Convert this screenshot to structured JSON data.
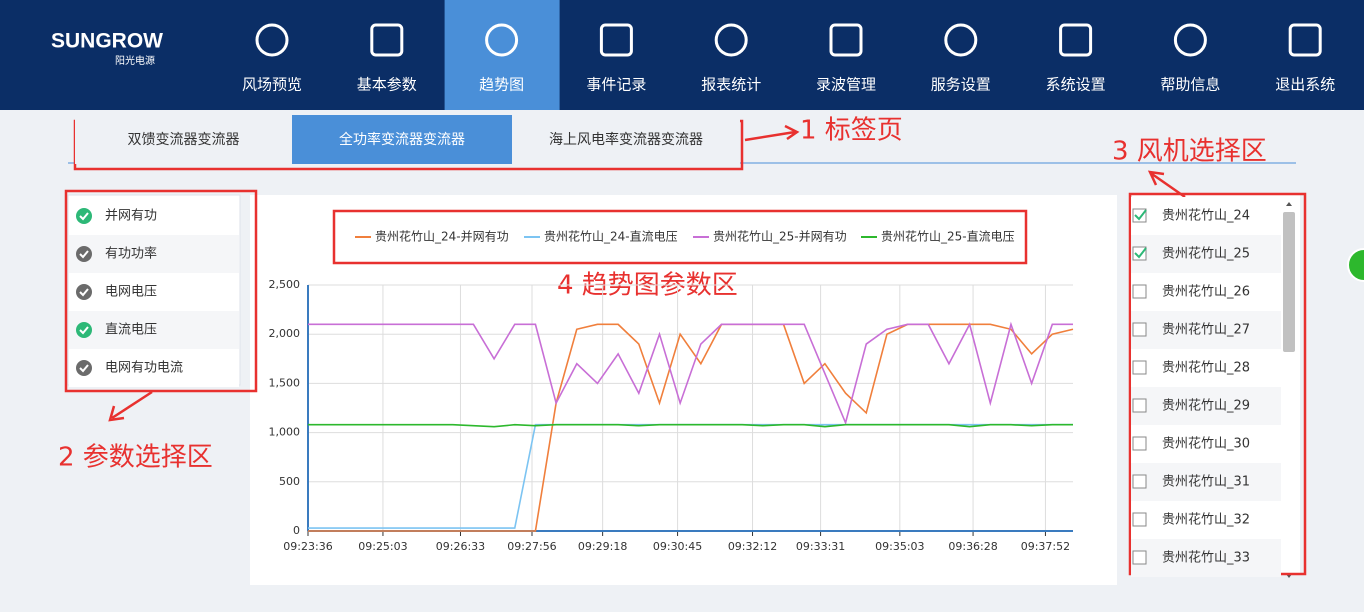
{
  "logo": {
    "brand": "SUNGROW",
    "sub": "阳光电源"
  },
  "nav": {
    "items": [
      "风场预览",
      "基本参数",
      "趋势图",
      "事件记录",
      "报表统计",
      "录波管理",
      "服务设置",
      "系统设置",
      "帮助信息",
      "退出系统"
    ],
    "active": 2
  },
  "tabs": [
    {
      "label": "双馈变流器变流器",
      "active": false
    },
    {
      "label": "全功率变流器变流器",
      "active": true
    },
    {
      "label": "海上风电率变流器变流器",
      "active": false
    }
  ],
  "params": [
    {
      "name": "并网有功",
      "checked": true
    },
    {
      "name": "有功功率",
      "checked": false
    },
    {
      "name": "电网电压",
      "checked": false
    },
    {
      "name": "直流电压",
      "checked": true
    },
    {
      "name": "电网有功电流",
      "checked": false
    }
  ],
  "turbines": [
    {
      "name": "贵州花竹山_24",
      "checked": true
    },
    {
      "name": "贵州花竹山_25",
      "checked": true
    },
    {
      "name": "贵州花竹山_26",
      "checked": false
    },
    {
      "name": "贵州花竹山_27",
      "checked": false
    },
    {
      "name": "贵州花竹山_28",
      "checked": false
    },
    {
      "name": "贵州花竹山_29",
      "checked": false
    },
    {
      "name": "贵州花竹山_30",
      "checked": false
    },
    {
      "name": "贵州花竹山_31",
      "checked": false
    },
    {
      "name": "贵州花竹山_32",
      "checked": false
    },
    {
      "name": "贵州花竹山_33",
      "checked": false
    }
  ],
  "annotations": [
    "1 标签页",
    "2 参数选择区",
    "3 风机选择区",
    "4 趋势图参数区"
  ],
  "chart_data": {
    "type": "line",
    "x": [
      "09:23:36",
      "09:24:00",
      "09:24:24",
      "09:24:48",
      "09:25:12",
      "09:25:36",
      "09:26:00",
      "09:26:24",
      "09:26:48",
      "09:27:12",
      "09:27:36",
      "09:28:00",
      "09:28:24",
      "09:28:48",
      "09:29:12",
      "09:29:36",
      "09:30:00",
      "09:30:24",
      "09:30:48",
      "09:31:12",
      "09:31:36",
      "09:32:00",
      "09:32:24",
      "09:32:48",
      "09:33:12",
      "09:33:36",
      "09:34:00",
      "09:34:24",
      "09:34:48",
      "09:35:12",
      "09:35:36",
      "09:36:00",
      "09:36:24",
      "09:36:48",
      "09:37:12",
      "09:37:36",
      "09:38:00",
      "09:38:24"
    ],
    "xlim": [
      "09:23:36",
      "09:38:24"
    ],
    "xticks": [
      "09:23:36",
      "09:25:03",
      "09:26:33",
      "09:27:56",
      "09:29:18",
      "09:30:45",
      "09:32:12",
      "09:33:31",
      "09:35:03",
      "09:36:28",
      "09:37:52"
    ],
    "ylim": [
      0,
      2500
    ],
    "yticks": [
      0,
      500,
      {
        "value": 1000,
        "label": "1,000"
      },
      {
        "value": 1500,
        "label": "1,500"
      },
      {
        "value": 2000,
        "label": "2,000"
      },
      {
        "value": 2500,
        "label": "2,500"
      }
    ],
    "grid": true,
    "series": [
      {
        "name": "贵州花竹山_24-并网有功",
        "color": "#f07f3c",
        "values": [
          0,
          0,
          0,
          0,
          0,
          0,
          0,
          0,
          0,
          0,
          0,
          0,
          1300,
          2050,
          2100,
          2100,
          1900,
          1300,
          2000,
          1700,
          2100,
          2100,
          2100,
          2100,
          1500,
          1700,
          1400,
          1200,
          2000,
          2100,
          2100,
          2100,
          2100,
          2100,
          2050,
          1800,
          2000,
          2050
        ]
      },
      {
        "name": "贵州花竹山_24-直流电压",
        "color": "#7cc4f2",
        "values": [
          30,
          30,
          30,
          30,
          30,
          30,
          30,
          30,
          30,
          30,
          30,
          1080,
          1080,
          1080,
          1080,
          1080,
          1080,
          1080,
          1080,
          1080,
          1080,
          1080,
          1080,
          1080,
          1080,
          1080,
          1080,
          1080,
          1080,
          1080,
          1080,
          1080,
          1080,
          1080,
          1080,
          1080,
          1080,
          1080
        ]
      },
      {
        "name": "贵州花竹山_25-并网有功",
        "color": "#c86fd6",
        "values": [
          2100,
          2100,
          2100,
          2100,
          2100,
          2100,
          2100,
          2100,
          2100,
          1750,
          2100,
          2100,
          1300,
          1700,
          1500,
          1800,
          1400,
          2000,
          1300,
          1900,
          2100,
          2100,
          2100,
          2100,
          2100,
          1600,
          1100,
          1900,
          2050,
          2100,
          2100,
          1700,
          2100,
          1300,
          2100,
          1500,
          2100,
          2100
        ]
      },
      {
        "name": "贵州花竹山_25-直流电压",
        "color": "#2db82d",
        "values": [
          1080,
          1080,
          1080,
          1080,
          1080,
          1080,
          1080,
          1080,
          1070,
          1060,
          1080,
          1070,
          1080,
          1080,
          1080,
          1080,
          1070,
          1080,
          1080,
          1080,
          1080,
          1080,
          1070,
          1080,
          1080,
          1060,
          1080,
          1080,
          1080,
          1080,
          1080,
          1080,
          1060,
          1080,
          1080,
          1070,
          1080,
          1080
        ]
      }
    ]
  }
}
